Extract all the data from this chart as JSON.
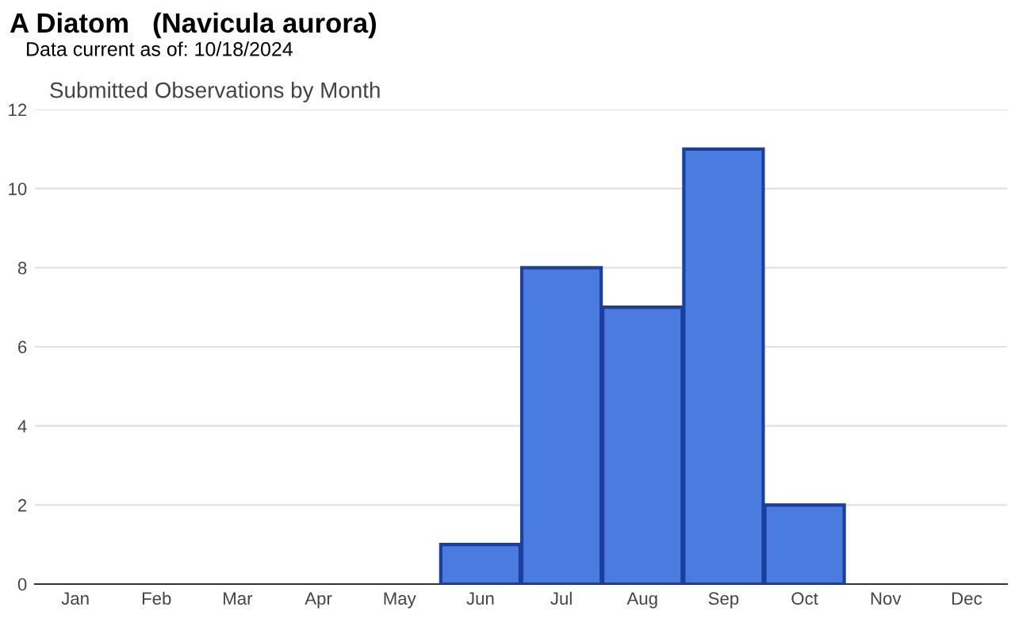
{
  "chart_data": {
    "type": "bar",
    "title": "A Diatom   (Navicula aurora)",
    "subtitle": "Data current as of: 10/18/2024",
    "annotations": [
      "Submitted Observations by Month"
    ],
    "categories": [
      "Jan",
      "Feb",
      "Mar",
      "Apr",
      "May",
      "Jun",
      "Jul",
      "Aug",
      "Sep",
      "Oct",
      "Nov",
      "Dec"
    ],
    "values": [
      0,
      0,
      0,
      0,
      0,
      1,
      8,
      7,
      11,
      2,
      0,
      0
    ],
    "color": "#4a7ce0",
    "ylim": [
      0,
      12
    ],
    "yticks": [
      0,
      2,
      4,
      6,
      8,
      10,
      12
    ],
    "grid": "y",
    "legend": false
  }
}
